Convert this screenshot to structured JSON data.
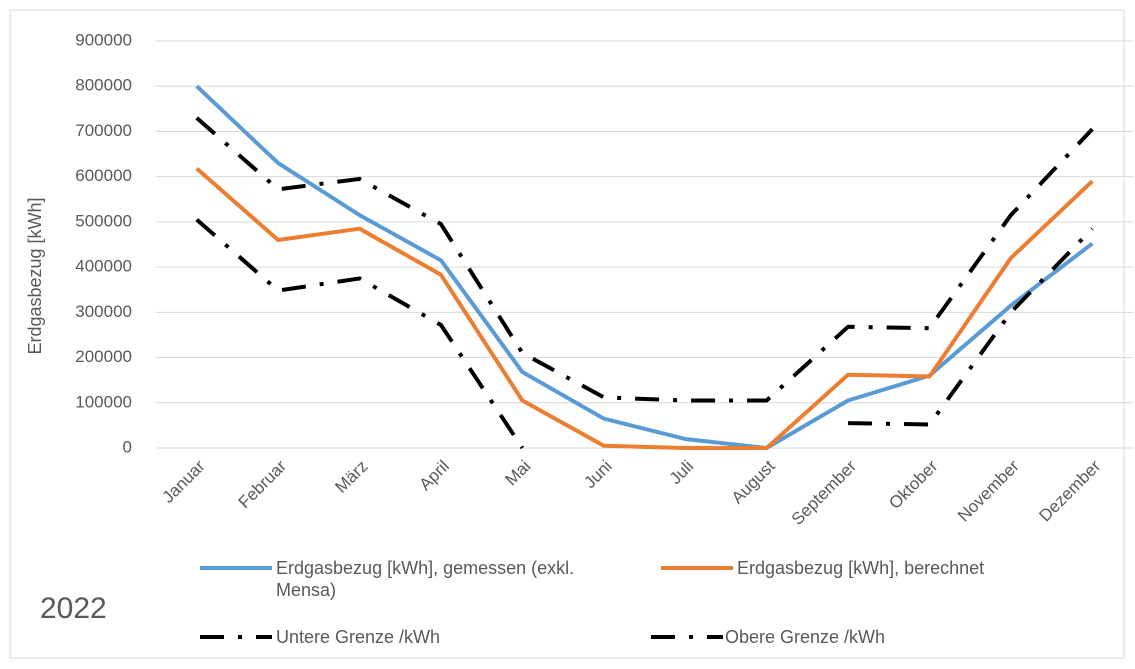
{
  "chart_data": {
    "type": "line",
    "annotation": "2022",
    "y_label": "Erdgasbezug [kWh]",
    "categories": [
      "Januar",
      "Februar",
      "März",
      "April",
      "Mai",
      "Juni",
      "Juli",
      "August",
      "September",
      "Oktober",
      "November",
      "Dezember"
    ],
    "series": [
      {
        "name": "Erdgasbezug [kWh], gemessen (exkl. Mensa)",
        "color": "#5b9bd5",
        "dash": "solid",
        "values": [
          800000,
          630000,
          515000,
          415000,
          168000,
          65000,
          20000,
          0,
          105000,
          160000,
          315000,
          452000
        ]
      },
      {
        "name": "Erdgasbezug [kWh], berechnet",
        "color": "#ed7d31",
        "dash": "solid",
        "values": [
          618000,
          460000,
          485000,
          383000,
          105000,
          5000,
          0,
          0,
          162000,
          158000,
          420000,
          590000
        ]
      },
      {
        "name": "Untere Grenze /kWh",
        "color": "#000000",
        "dash": "dashdot",
        "values": [
          505000,
          348000,
          375000,
          272000,
          0,
          null,
          null,
          null,
          55000,
          52000,
          300000,
          485000
        ]
      },
      {
        "name": "Obere Grenze /kWh",
        "color": "#000000",
        "dash": "dashdot",
        "values": [
          730000,
          572000,
          595000,
          495000,
          210000,
          112000,
          105000,
          105000,
          268000,
          265000,
          515000,
          705000
        ]
      }
    ],
    "ylim": [
      0,
      900000
    ],
    "yticks": [
      0,
      100000,
      200000,
      300000,
      400000,
      500000,
      600000,
      700000,
      800000,
      900000
    ],
    "grid": true
  }
}
